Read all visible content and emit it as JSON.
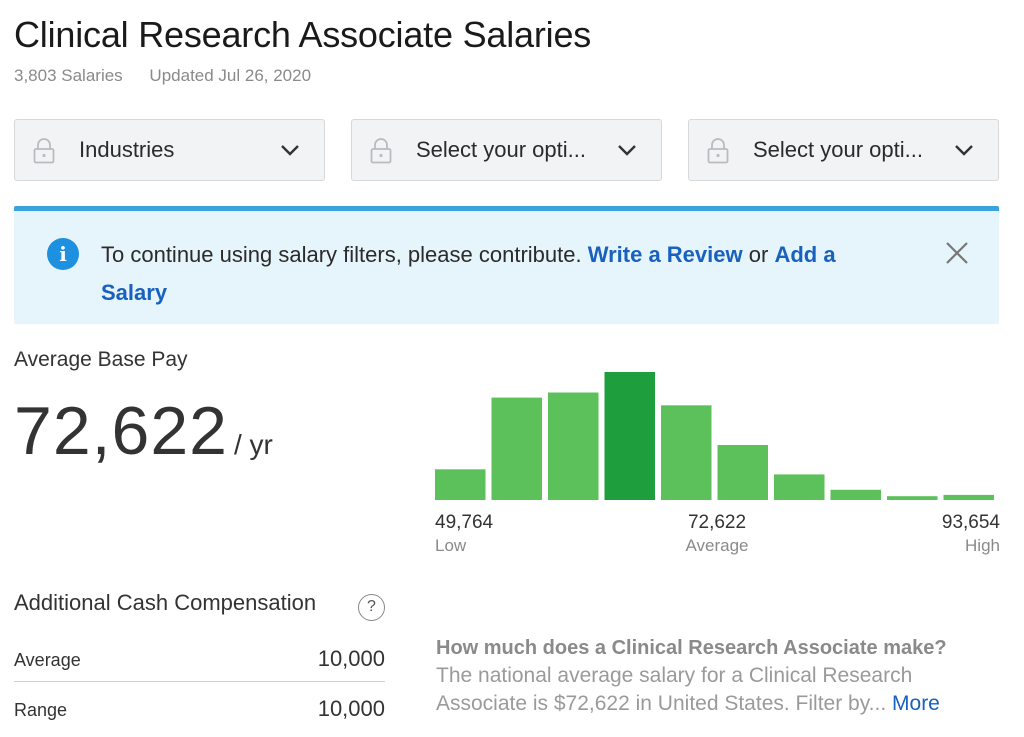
{
  "header": {
    "title": "Clinical Research Associate Salaries",
    "salary_count": "3,803 Salaries",
    "updated": "Updated Jul 26, 2020"
  },
  "filters": [
    {
      "label": "Industries",
      "icon": "lock-icon"
    },
    {
      "label": "Select your opti...",
      "icon": "lock-icon"
    },
    {
      "label": "Select your opti...",
      "icon": "lock-icon"
    }
  ],
  "banner": {
    "message": "To continue using salary filters, please contribute.",
    "link_review": "Write a Review",
    "connector": "or",
    "link_salary": "Add a Salary",
    "accent": "#3aa3dc",
    "background": "#e6f4fb"
  },
  "base_pay": {
    "label": "Average Base Pay",
    "value": "72,622",
    "unit": "/ yr"
  },
  "chart_data": {
    "type": "bar",
    "values": [
      24,
      80,
      84,
      100,
      74,
      43,
      20,
      8,
      3,
      4
    ],
    "highlight_index": 3,
    "color": "#5cc15a",
    "highlight_color": "#1f9e3e",
    "low": {
      "value": "49,764",
      "label": "Low"
    },
    "average": {
      "value": "72,622",
      "label": "Average"
    },
    "high": {
      "value": "93,654",
      "label": "High"
    }
  },
  "additional": {
    "title": "Additional Cash Compensation",
    "rows": [
      {
        "label": "Average",
        "value": "10,000"
      },
      {
        "label": "Range",
        "value": "10,000"
      }
    ]
  },
  "faq": {
    "question": "How much does a Clinical Research Associate make?",
    "answer": "The national average salary for a Clinical Research Associate is $72,622 in United States. Filter by...",
    "more": "More"
  }
}
